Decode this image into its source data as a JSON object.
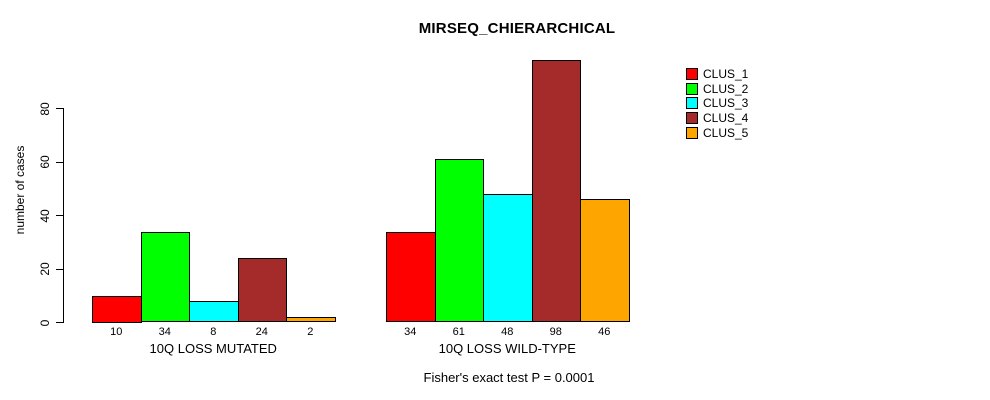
{
  "chart_data": {
    "type": "bar",
    "title": "MIRSEQ_CHIERARCHICAL",
    "ylabel": "number of cases",
    "xlabel": "",
    "yticks": [
      0,
      20,
      40,
      60,
      80
    ],
    "ylim": [
      0,
      98
    ],
    "grid": false,
    "legend_position": "top-right",
    "categories": [
      "10Q LOSS MUTATED",
      "10Q LOSS WILD-TYPE"
    ],
    "series": [
      {
        "name": "CLUS_1",
        "color": "#ff0000",
        "values": [
          10,
          34
        ]
      },
      {
        "name": "CLUS_2",
        "color": "#00ff00",
        "values": [
          34,
          61
        ]
      },
      {
        "name": "CLUS_3",
        "color": "#00ffff",
        "values": [
          8,
          48
        ]
      },
      {
        "name": "CLUS_4",
        "color": "#a52a2a",
        "values": [
          24,
          98
        ]
      },
      {
        "name": "CLUS_5",
        "color": "#ffa500",
        "values": [
          2,
          46
        ]
      }
    ],
    "bar_value_labels_shown": true,
    "annotation": "Fisher's exact test P = 0.0001",
    "axis_color": "#000000",
    "bar_border_color": "#000000",
    "background_color": "#ffffff"
  }
}
